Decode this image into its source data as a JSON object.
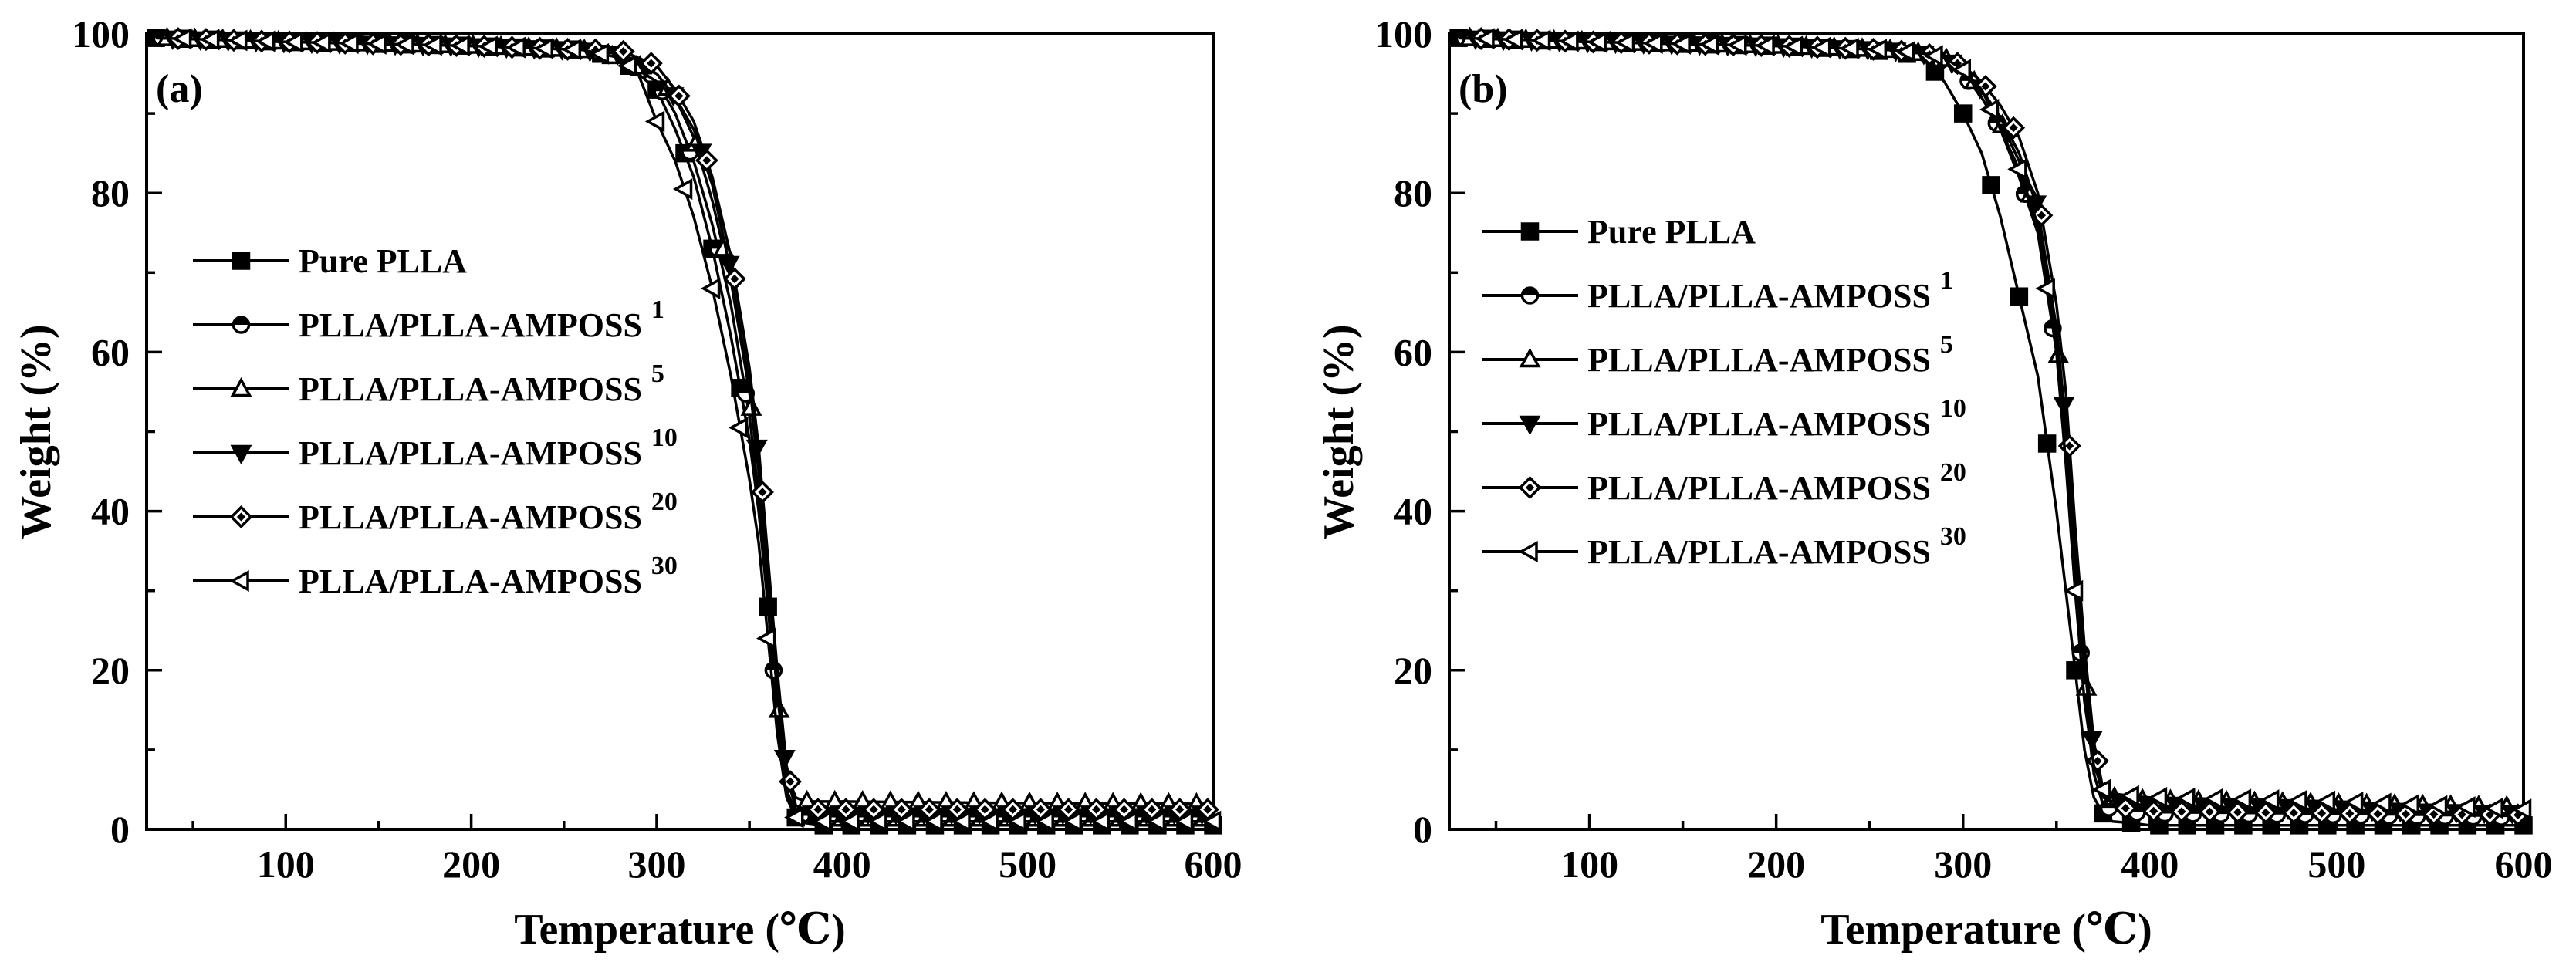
{
  "chart_data": [
    {
      "type": "line",
      "panel_label": "(a)",
      "xlabel": "Temperature (℃)",
      "ylabel": "Weight (%)",
      "xlim": [
        25,
        600
      ],
      "ylim": [
        0,
        100
      ],
      "xticks": [
        100,
        200,
        300,
        400,
        500,
        600
      ],
      "yticks": [
        0,
        20,
        40,
        60,
        80,
        100
      ],
      "grid": false,
      "legend_position": "center-left",
      "series": [
        {
          "name": "Pure PLLA",
          "sup": "",
          "marker": "square-filled",
          "x": [
            30,
            100,
            200,
            260,
            280,
            300,
            310,
            320,
            330,
            340,
            350,
            355,
            360,
            365,
            370,
            375,
            380,
            390,
            400,
            500,
            600
          ],
          "y": [
            99.5,
            99,
            98.5,
            98,
            97,
            93,
            88,
            82,
            73,
            62,
            49,
            40,
            28,
            14,
            5,
            1.5,
            0.8,
            0.5,
            0.5,
            0.5,
            0.5
          ]
        },
        {
          "name": "PLLA/PLLA-AMPOSS",
          "sup": "1",
          "marker": "circle-half",
          "x": [
            30,
            100,
            200,
            260,
            280,
            300,
            310,
            320,
            330,
            340,
            350,
            355,
            360,
            365,
            370,
            375,
            380,
            390,
            400,
            500,
            600
          ],
          "y": [
            99.5,
            99,
            98.5,
            98,
            97,
            94,
            90,
            84,
            76,
            66,
            52,
            42,
            29,
            14,
            5,
            2,
            1.5,
            1.5,
            1.5,
            1.5,
            1.5
          ]
        },
        {
          "name": "PLLA/PLLA-AMPOSS",
          "sup": "5",
          "marker": "triangle-up-open",
          "x": [
            30,
            100,
            200,
            260,
            280,
            300,
            310,
            320,
            330,
            340,
            350,
            355,
            360,
            365,
            370,
            375,
            380,
            390,
            400,
            500,
            600
          ],
          "y": [
            99.5,
            99,
            98.5,
            98,
            97,
            95,
            92,
            87,
            79,
            69,
            55,
            45,
            31,
            17,
            7,
            4,
            3.5,
            3.5,
            3.5,
            3.3,
            3.2
          ]
        },
        {
          "name": "PLLA/PLLA-AMPOSS",
          "sup": "10",
          "marker": "triangle-down-filled",
          "x": [
            30,
            100,
            200,
            260,
            280,
            300,
            310,
            320,
            330,
            340,
            350,
            355,
            360,
            365,
            370,
            375,
            380,
            390,
            400,
            500,
            600
          ],
          "y": [
            99.5,
            99,
            98.5,
            98,
            97.5,
            95,
            92,
            88,
            81,
            70,
            56,
            46,
            32,
            17,
            7,
            2.5,
            2,
            2,
            2,
            2,
            2
          ]
        },
        {
          "name": "PLLA/PLLA-AMPOSS",
          "sup": "20",
          "marker": "diamond-half",
          "x": [
            30,
            100,
            200,
            260,
            280,
            300,
            310,
            320,
            330,
            340,
            350,
            355,
            360,
            365,
            370,
            375,
            380,
            390,
            400,
            500,
            600
          ],
          "y": [
            99.5,
            99,
            98.5,
            98,
            98,
            96,
            93,
            89,
            82,
            72,
            58,
            48,
            34,
            20,
            8,
            3,
            2.5,
            2.5,
            2.5,
            2.5,
            2.5
          ]
        },
        {
          "name": "PLLA/PLLA-AMPOSS",
          "sup": "30",
          "marker": "triangle-left-open",
          "x": [
            30,
            100,
            200,
            260,
            280,
            290,
            300,
            310,
            320,
            330,
            340,
            350,
            355,
            360,
            365,
            370,
            375,
            380,
            390,
            400,
            500,
            600
          ],
          "y": [
            99.5,
            99,
            98.5,
            98,
            97,
            95,
            89,
            84,
            77,
            68,
            57,
            44,
            36,
            24,
            12,
            4,
            1.5,
            1,
            1,
            1,
            1,
            1
          ]
        }
      ]
    },
    {
      "type": "line",
      "panel_label": "(b)",
      "xlabel": "Temperature (℃)",
      "ylabel": "Weight (%)",
      "xlim": [
        25,
        600
      ],
      "ylim": [
        0,
        100
      ],
      "xticks": [
        100,
        200,
        300,
        400,
        500,
        600
      ],
      "yticks": [
        0,
        20,
        40,
        60,
        80,
        100
      ],
      "grid": false,
      "legend_position": "top-left",
      "series": [
        {
          "name": "Pure PLLA",
          "sup": "",
          "marker": "square-filled",
          "x": [
            30,
            100,
            200,
            250,
            270,
            280,
            290,
            300,
            310,
            320,
            330,
            340,
            350,
            355,
            360,
            365,
            370,
            375,
            380,
            390,
            400,
            500,
            600
          ],
          "y": [
            99.5,
            99,
            98.5,
            98,
            97.5,
            96.5,
            94,
            90,
            85,
            77,
            67,
            57,
            40,
            30,
            20,
            10,
            4,
            2,
            1,
            0.8,
            0.5,
            0.5,
            0.5
          ]
        },
        {
          "name": "PLLA/PLLA-AMPOSS",
          "sup": "1",
          "marker": "circle-half",
          "x": [
            30,
            100,
            200,
            260,
            280,
            290,
            300,
            310,
            320,
            330,
            340,
            350,
            355,
            360,
            365,
            370,
            375,
            380,
            390,
            400,
            500,
            600
          ],
          "y": [
            99.5,
            99,
            98.5,
            98,
            97.5,
            96.5,
            95,
            92,
            88,
            82,
            75,
            60,
            47,
            30,
            17,
            7,
            3,
            2.5,
            2.2,
            2,
            1.8,
            1.5
          ]
        },
        {
          "name": "PLLA/PLLA-AMPOSS",
          "sup": "5",
          "marker": "triangle-up-open",
          "x": [
            30,
            100,
            200,
            260,
            280,
            290,
            300,
            310,
            320,
            330,
            340,
            350,
            355,
            360,
            365,
            370,
            375,
            380,
            390,
            400,
            500,
            600
          ],
          "y": [
            99.5,
            99,
            98.5,
            98,
            97.5,
            97,
            95.5,
            93,
            89,
            84,
            77,
            62,
            50,
            34,
            20,
            9,
            5,
            4,
            3.8,
            3.7,
            3.2,
            2.8
          ]
        },
        {
          "name": "PLLA/PLLA-AMPOSS",
          "sup": "10",
          "marker": "triangle-down-filled",
          "x": [
            30,
            100,
            200,
            260,
            280,
            290,
            300,
            310,
            320,
            330,
            340,
            350,
            355,
            360,
            365,
            370,
            375,
            380,
            390,
            400,
            500,
            600
          ],
          "y": [
            99.5,
            99,
            98.5,
            98,
            97.5,
            97,
            95.5,
            93,
            89.5,
            85,
            78,
            63,
            51,
            35,
            21,
            9,
            4,
            3.5,
            3.2,
            3,
            2.5,
            2
          ]
        },
        {
          "name": "PLLA/PLLA-AMPOSS",
          "sup": "20",
          "marker": "diamond-half",
          "x": [
            30,
            100,
            200,
            260,
            280,
            290,
            300,
            310,
            320,
            330,
            340,
            350,
            355,
            360,
            365,
            370,
            375,
            380,
            390,
            400,
            500,
            600
          ],
          "y": [
            99.5,
            99,
            98.5,
            98,
            97.5,
            97,
            96,
            94,
            91,
            87,
            80,
            66,
            55,
            38,
            23,
            11,
            5,
            3,
            2.5,
            2.3,
            2,
            1.8
          ]
        },
        {
          "name": "PLLA/PLLA-AMPOSS",
          "sup": "30",
          "marker": "triangle-left-open",
          "x": [
            30,
            100,
            200,
            260,
            280,
            290,
            300,
            310,
            320,
            330,
            340,
            350,
            355,
            360,
            365,
            370,
            375,
            380,
            390,
            400,
            500,
            600
          ],
          "y": [
            99.5,
            99,
            98.5,
            98,
            97.5,
            97,
            95.5,
            93,
            88,
            83,
            76,
            60,
            46,
            30,
            16,
            8,
            5,
            4.5,
            4.2,
            4,
            3.5,
            2.5
          ]
        }
      ]
    }
  ]
}
